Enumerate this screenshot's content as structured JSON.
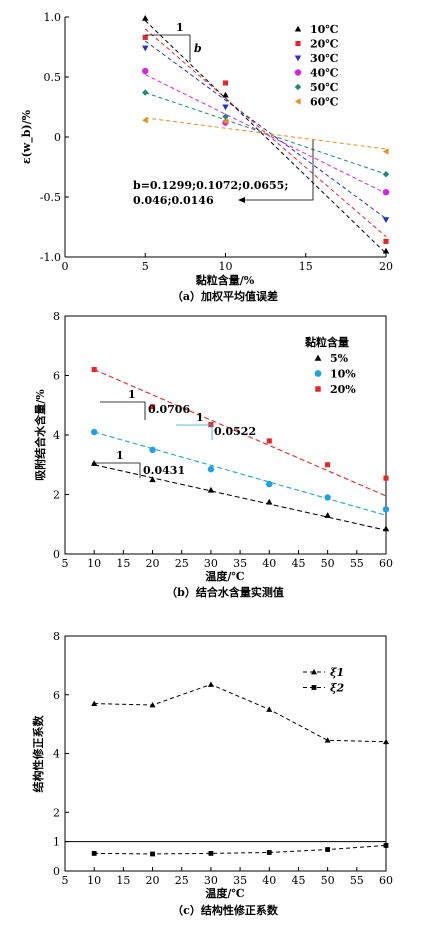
{
  "chart_data": [
    {
      "type": "line",
      "caption": "（a）加权平均值误差",
      "xlabel": "黏粒含量/%",
      "ylabel": "ε(w_b)/%",
      "xlim": [
        0,
        20
      ],
      "ylim": [
        -1.0,
        1.0
      ],
      "xticks": [
        0,
        5,
        10,
        15,
        20
      ],
      "yticks": [
        1.0,
        0.5,
        0,
        -0.5,
        -1.0
      ],
      "ytick_labels": [
        "1.0",
        "0.5",
        "0",
        "-0.5",
        "-1.0"
      ],
      "legend_placement": "top-right",
      "series": [
        {
          "name": "10℃",
          "marker": "triangle-up",
          "color": "#000000",
          "points": [
            [
              5,
              0.99
            ],
            [
              10,
              0.35
            ],
            [
              20,
              -0.95
            ]
          ],
          "fit": [
            [
              5,
              0.97
            ],
            [
              20,
              -0.97
            ]
          ]
        },
        {
          "name": "20℃",
          "marker": "square",
          "color": "#e8262a",
          "points": [
            [
              5,
              0.83
            ],
            [
              10,
              0.45
            ],
            [
              20,
              -0.87
            ]
          ],
          "fit": [
            [
              5,
              0.9
            ],
            [
              20,
              -0.83
            ]
          ]
        },
        {
          "name": "30℃",
          "marker": "triangle-down",
          "color": "#1f2fd4",
          "points": [
            [
              5,
              0.74
            ],
            [
              10,
              0.25
            ],
            [
              20,
              -0.69
            ]
          ],
          "fit": [
            [
              5,
              0.8
            ],
            [
              20,
              -0.68
            ]
          ]
        },
        {
          "name": "40℃",
          "marker": "circle",
          "color": "#e020e0",
          "points": [
            [
              5,
              0.55
            ],
            [
              10,
              0.12
            ],
            [
              20,
              -0.46
            ]
          ],
          "fit": [
            [
              5,
              0.52
            ],
            [
              20,
              -0.47
            ]
          ]
        },
        {
          "name": "50℃",
          "marker": "diamond",
          "color": "#1a8a7a",
          "points": [
            [
              5,
              0.37
            ],
            [
              10,
              0.17
            ],
            [
              20,
              -0.31
            ]
          ],
          "fit": [
            [
              5,
              0.37
            ],
            [
              20,
              -0.31
            ]
          ]
        },
        {
          "name": "60℃",
          "marker": "triangle-left",
          "color": "#f08a1a",
          "points": [
            [
              5,
              0.14
            ],
            [
              10,
              0.13
            ],
            [
              20,
              -0.12
            ]
          ],
          "fit": [
            [
              5,
              0.16
            ],
            [
              20,
              -0.1
            ]
          ]
        }
      ],
      "slope_label_1": "1",
      "slope_label_b": "b",
      "b_values_line1": "b=0.1299;0.1072;0.0655;",
      "b_values_line2": "0.046;0.0146"
    },
    {
      "type": "scatter",
      "caption": "（b）结合水含量实测值",
      "xlabel": "温度/℃",
      "ylabel": "吸附结合水含量/%",
      "xlim": [
        5,
        60
      ],
      "ylim": [
        0,
        8
      ],
      "xticks": [
        5,
        10,
        15,
        20,
        25,
        30,
        35,
        40,
        45,
        50,
        55,
        60
      ],
      "yticks": [
        0,
        2,
        4,
        6,
        8
      ],
      "legend_title": "黏粒含量",
      "legend_placement": "top-right",
      "series": [
        {
          "name": "5%",
          "marker": "triangle-up",
          "color": "#000000",
          "points": [
            [
              10,
              3.05
            ],
            [
              20,
              2.5
            ],
            [
              30,
              2.15
            ],
            [
              40,
              1.75
            ],
            [
              50,
              1.3
            ],
            [
              60,
              0.85
            ]
          ],
          "fit": [
            [
              10,
              3.0
            ],
            [
              60,
              0.8
            ]
          ]
        },
        {
          "name": "10%",
          "marker": "circle",
          "color": "#1fa3e0",
          "points": [
            [
              10,
              4.1
            ],
            [
              20,
              3.5
            ],
            [
              30,
              2.85
            ],
            [
              40,
              2.35
            ],
            [
              50,
              1.9
            ],
            [
              60,
              1.5
            ]
          ],
          "fit": [
            [
              10,
              4.1
            ],
            [
              60,
              1.3
            ]
          ]
        },
        {
          "name": "20%",
          "marker": "square",
          "color": "#e8262a",
          "points": [
            [
              10,
              6.2
            ],
            [
              20,
              4.95
            ],
            [
              30,
              4.35
            ],
            [
              40,
              3.8
            ],
            [
              50,
              3.0
            ],
            [
              60,
              2.55
            ]
          ],
          "fit": [
            [
              10,
              6.2
            ],
            [
              60,
              1.95
            ]
          ]
        }
      ],
      "slope_20_one": "1",
      "slope_20": "0.0706",
      "slope_10_one": "1",
      "slope_10": "0.0522",
      "slope_5_one": "1",
      "slope_5": "0.0431"
    },
    {
      "type": "line",
      "caption": "（c）结构性修正系数",
      "xlabel": "温度/℃",
      "ylabel": "结构性修正系数",
      "xlim": [
        5,
        60
      ],
      "ylim": [
        0,
        8
      ],
      "xticks": [
        5,
        10,
        15,
        20,
        25,
        30,
        35,
        40,
        45,
        50,
        55,
        60
      ],
      "yticks": [
        0,
        1,
        2,
        4,
        6,
        8
      ],
      "reference_y": 1,
      "legend_placement": "top-right",
      "series": [
        {
          "name": "ξ1",
          "marker": "triangle-up",
          "color": "#000000",
          "points": [
            [
              10,
              5.7
            ],
            [
              20,
              5.65
            ],
            [
              30,
              6.35
            ],
            [
              40,
              5.5
            ],
            [
              50,
              4.45
            ],
            [
              60,
              4.4
            ]
          ]
        },
        {
          "name": "ξ2",
          "marker": "square",
          "color": "#000000",
          "points": [
            [
              10,
              0.6
            ],
            [
              20,
              0.58
            ],
            [
              30,
              0.6
            ],
            [
              40,
              0.63
            ],
            [
              50,
              0.73
            ],
            [
              60,
              0.87
            ]
          ]
        }
      ]
    }
  ]
}
